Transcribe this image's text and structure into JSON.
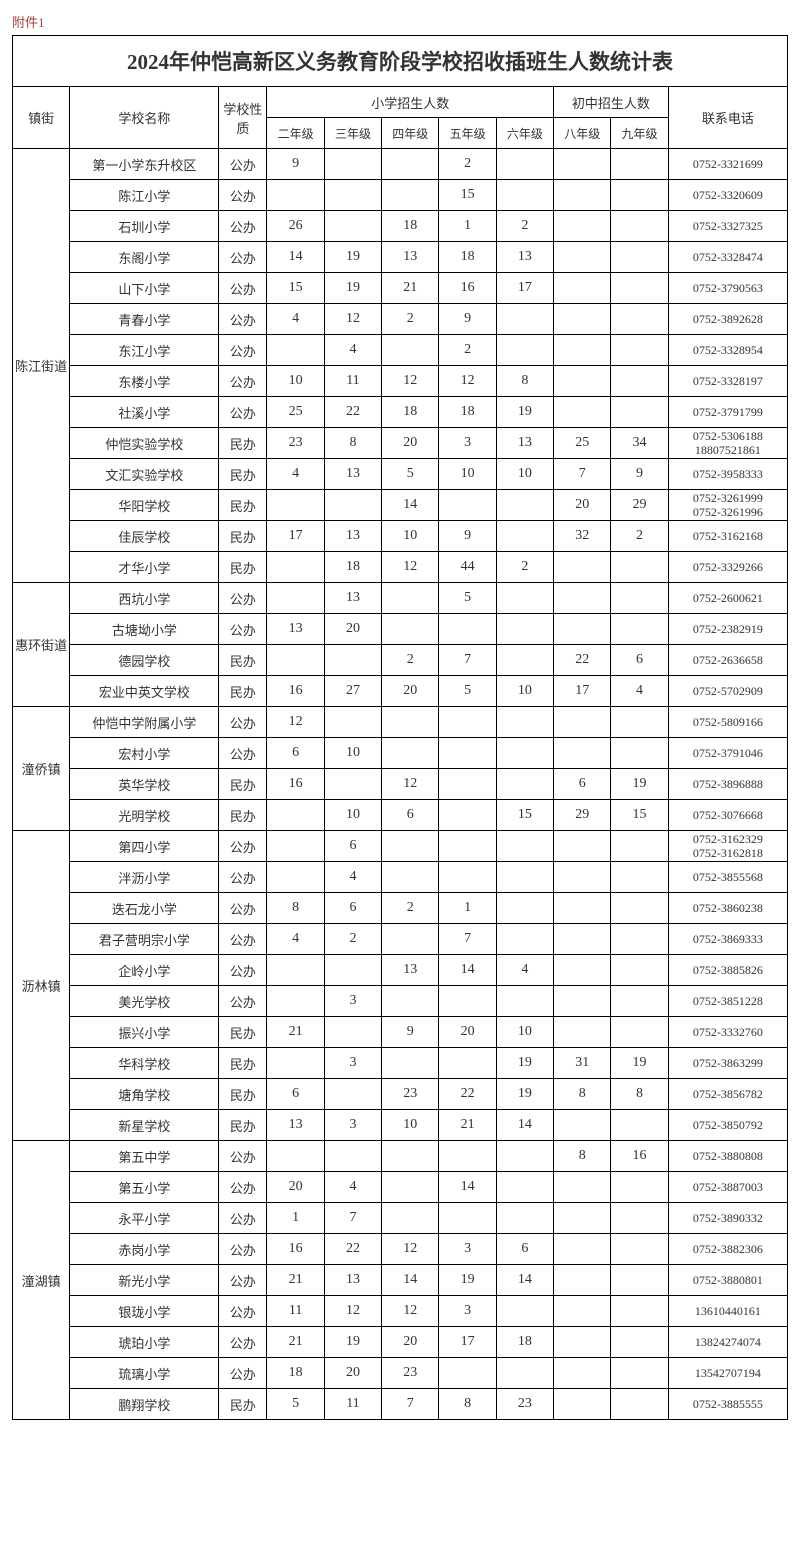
{
  "attachment_label": "附件1",
  "title": "2024年仲恺高新区义务教育阶段学校招收插班生人数统计表",
  "headers": {
    "town": "镇街",
    "school": "学校名称",
    "type": "学校性质",
    "primary_group": "小学招生人数",
    "junior_group": "初中招生人数",
    "phone": "联系电话",
    "g2": "二年级",
    "g3": "三年级",
    "g4": "四年级",
    "g5": "五年级",
    "g6": "六年级",
    "g8": "八年级",
    "g9": "九年级"
  },
  "towns": [
    {
      "name": "陈江街道",
      "schools": [
        {
          "name": "第一小学东升校区",
          "type": "公办",
          "g2": "9",
          "g3": "",
          "g4": "",
          "g5": "2",
          "g6": "",
          "g8": "",
          "g9": "",
          "phone": "0752-3321699"
        },
        {
          "name": "陈江小学",
          "type": "公办",
          "g2": "",
          "g3": "",
          "g4": "",
          "g5": "15",
          "g6": "",
          "g8": "",
          "g9": "",
          "phone": "0752-3320609"
        },
        {
          "name": "石圳小学",
          "type": "公办",
          "g2": "26",
          "g3": "",
          "g4": "18",
          "g5": "1",
          "g6": "2",
          "g8": "",
          "g9": "",
          "phone": "0752-3327325"
        },
        {
          "name": "东阁小学",
          "type": "公办",
          "g2": "14",
          "g3": "19",
          "g4": "13",
          "g5": "18",
          "g6": "13",
          "g8": "",
          "g9": "",
          "phone": "0752-3328474"
        },
        {
          "name": "山下小学",
          "type": "公办",
          "g2": "15",
          "g3": "19",
          "g4": "21",
          "g5": "16",
          "g6": "17",
          "g8": "",
          "g9": "",
          "phone": "0752-3790563"
        },
        {
          "name": "青春小学",
          "type": "公办",
          "g2": "4",
          "g3": "12",
          "g4": "2",
          "g5": "9",
          "g6": "",
          "g8": "",
          "g9": "",
          "phone": "0752-3892628"
        },
        {
          "name": "东江小学",
          "type": "公办",
          "g2": "",
          "g3": "4",
          "g4": "",
          "g5": "2",
          "g6": "",
          "g8": "",
          "g9": "",
          "phone": "0752-3328954"
        },
        {
          "name": "东楼小学",
          "type": "公办",
          "g2": "10",
          "g3": "11",
          "g4": "12",
          "g5": "12",
          "g6": "8",
          "g8": "",
          "g9": "",
          "phone": "0752-3328197"
        },
        {
          "name": "社溪小学",
          "type": "公办",
          "g2": "25",
          "g3": "22",
          "g4": "18",
          "g5": "18",
          "g6": "19",
          "g8": "",
          "g9": "",
          "phone": "0752-3791799"
        },
        {
          "name": "仲恺实验学校",
          "type": "民办",
          "g2": "23",
          "g3": "8",
          "g4": "20",
          "g5": "3",
          "g6": "13",
          "g8": "25",
          "g9": "34",
          "phone": "0752-5306188\n18807521861"
        },
        {
          "name": "文汇实验学校",
          "type": "民办",
          "g2": "4",
          "g3": "13",
          "g4": "5",
          "g5": "10",
          "g6": "10",
          "g8": "7",
          "g9": "9",
          "phone": "0752-3958333"
        },
        {
          "name": "华阳学校",
          "type": "民办",
          "g2": "",
          "g3": "",
          "g4": "14",
          "g5": "",
          "g6": "",
          "g8": "20",
          "g9": "29",
          "phone": "0752-3261999\n0752-3261996"
        },
        {
          "name": "佳辰学校",
          "type": "民办",
          "g2": "17",
          "g3": "13",
          "g4": "10",
          "g5": "9",
          "g6": "",
          "g8": "32",
          "g9": "2",
          "phone": "0752-3162168"
        },
        {
          "name": "才华小学",
          "type": "民办",
          "g2": "",
          "g3": "18",
          "g4": "12",
          "g5": "44",
          "g6": "2",
          "g8": "",
          "g9": "",
          "phone": "0752-3329266"
        }
      ]
    },
    {
      "name": "惠环街道",
      "schools": [
        {
          "name": "西坑小学",
          "type": "公办",
          "g2": "",
          "g3": "13",
          "g4": "",
          "g5": "5",
          "g6": "",
          "g8": "",
          "g9": "",
          "phone": "0752-2600621"
        },
        {
          "name": "古塘坳小学",
          "type": "公办",
          "g2": "13",
          "g3": "20",
          "g4": "",
          "g5": "",
          "g6": "",
          "g8": "",
          "g9": "",
          "phone": "0752-2382919"
        },
        {
          "name": "德园学校",
          "type": "民办",
          "g2": "",
          "g3": "",
          "g4": "2",
          "g5": "7",
          "g6": "",
          "g8": "22",
          "g9": "6",
          "phone": "0752-2636658"
        },
        {
          "name": "宏业中英文学校",
          "type": "民办",
          "g2": "16",
          "g3": "27",
          "g4": "20",
          "g5": "5",
          "g6": "10",
          "g8": "17",
          "g9": "4",
          "phone": "0752-5702909"
        }
      ]
    },
    {
      "name": "潼侨镇",
      "schools": [
        {
          "name": "仲恺中学附属小学",
          "type": "公办",
          "g2": "12",
          "g3": "",
          "g4": "",
          "g5": "",
          "g6": "",
          "g8": "",
          "g9": "",
          "phone": "0752-5809166"
        },
        {
          "name": "宏村小学",
          "type": "公办",
          "g2": "6",
          "g3": "10",
          "g4": "",
          "g5": "",
          "g6": "",
          "g8": "",
          "g9": "",
          "phone": "0752-3791046"
        },
        {
          "name": "英华学校",
          "type": "民办",
          "g2": "16",
          "g3": "",
          "g4": "12",
          "g5": "",
          "g6": "",
          "g8": "6",
          "g9": "19",
          "phone": "0752-3896888"
        },
        {
          "name": "光明学校",
          "type": "民办",
          "g2": "",
          "g3": "10",
          "g4": "6",
          "g5": "",
          "g6": "15",
          "g8": "29",
          "g9": "15",
          "phone": "0752-3076668"
        }
      ]
    },
    {
      "name": "沥林镇",
      "schools": [
        {
          "name": "第四小学",
          "type": "公办",
          "g2": "",
          "g3": "6",
          "g4": "",
          "g5": "",
          "g6": "",
          "g8": "",
          "g9": "",
          "phone": "0752-3162329\n0752-3162818"
        },
        {
          "name": "泮沥小学",
          "type": "公办",
          "g2": "",
          "g3": "4",
          "g4": "",
          "g5": "",
          "g6": "",
          "g8": "",
          "g9": "",
          "phone": "0752-3855568"
        },
        {
          "name": "迭石龙小学",
          "type": "公办",
          "g2": "8",
          "g3": "6",
          "g4": "2",
          "g5": "1",
          "g6": "",
          "g8": "",
          "g9": "",
          "phone": "0752-3860238"
        },
        {
          "name": "君子营明宗小学",
          "type": "公办",
          "g2": "4",
          "g3": "2",
          "g4": "",
          "g5": "7",
          "g6": "",
          "g8": "",
          "g9": "",
          "phone": "0752-3869333"
        },
        {
          "name": "企岭小学",
          "type": "公办",
          "g2": "",
          "g3": "",
          "g4": "13",
          "g5": "14",
          "g6": "4",
          "g8": "",
          "g9": "",
          "phone": "0752-3885826"
        },
        {
          "name": "美光学校",
          "type": "公办",
          "g2": "",
          "g3": "3",
          "g4": "",
          "g5": "",
          "g6": "",
          "g8": "",
          "g9": "",
          "phone": "0752-3851228"
        },
        {
          "name": "振兴小学",
          "type": "民办",
          "g2": "21",
          "g3": "",
          "g4": "9",
          "g5": "20",
          "g6": "10",
          "g8": "",
          "g9": "",
          "phone": "0752-3332760"
        },
        {
          "name": "华科学校",
          "type": "民办",
          "g2": "",
          "g3": "3",
          "g4": "",
          "g5": "",
          "g6": "19",
          "g8": "31",
          "g9": "19",
          "phone": "0752-3863299"
        },
        {
          "name": "塘角学校",
          "type": "民办",
          "g2": "6",
          "g3": "",
          "g4": "23",
          "g5": "22",
          "g6": "19",
          "g8": "8",
          "g9": "8",
          "phone": "0752-3856782"
        },
        {
          "name": "新星学校",
          "type": "民办",
          "g2": "13",
          "g3": "3",
          "g4": "10",
          "g5": "21",
          "g6": "14",
          "g8": "",
          "g9": "",
          "phone": "0752-3850792"
        }
      ]
    },
    {
      "name": "潼湖镇",
      "schools": [
        {
          "name": "第五中学",
          "type": "公办",
          "g2": "",
          "g3": "",
          "g4": "",
          "g5": "",
          "g6": "",
          "g8": "8",
          "g9": "16",
          "phone": "0752-3880808"
        },
        {
          "name": "第五小学",
          "type": "公办",
          "g2": "20",
          "g3": "4",
          "g4": "",
          "g5": "14",
          "g6": "",
          "g8": "",
          "g9": "",
          "phone": "0752-3887003"
        },
        {
          "name": "永平小学",
          "type": "公办",
          "g2": "1",
          "g3": "7",
          "g4": "",
          "g5": "",
          "g6": "",
          "g8": "",
          "g9": "",
          "phone": "0752-3890332"
        },
        {
          "name": "赤岗小学",
          "type": "公办",
          "g2": "16",
          "g3": "22",
          "g4": "12",
          "g5": "3",
          "g6": "6",
          "g8": "",
          "g9": "",
          "phone": "0752-3882306"
        },
        {
          "name": "新光小学",
          "type": "公办",
          "g2": "21",
          "g3": "13",
          "g4": "14",
          "g5": "19",
          "g6": "14",
          "g8": "",
          "g9": "",
          "phone": "0752-3880801"
        },
        {
          "name": "银珑小学",
          "type": "公办",
          "g2": "11",
          "g3": "12",
          "g4": "12",
          "g5": "3",
          "g6": "",
          "g8": "",
          "g9": "",
          "phone": "13610440161"
        },
        {
          "name": "琥珀小学",
          "type": "公办",
          "g2": "21",
          "g3": "19",
          "g4": "20",
          "g5": "17",
          "g6": "18",
          "g8": "",
          "g9": "",
          "phone": "13824274074"
        },
        {
          "name": "琉璃小学",
          "type": "公办",
          "g2": "18",
          "g3": "20",
          "g4": "23",
          "g5": "",
          "g6": "",
          "g8": "",
          "g9": "",
          "phone": "13542707194"
        },
        {
          "name": "鹏翔学校",
          "type": "民办",
          "g2": "5",
          "g3": "11",
          "g4": "7",
          "g5": "8",
          "g6": "23",
          "g8": "",
          "g9": "",
          "phone": "0752-3885555"
        }
      ]
    }
  ]
}
